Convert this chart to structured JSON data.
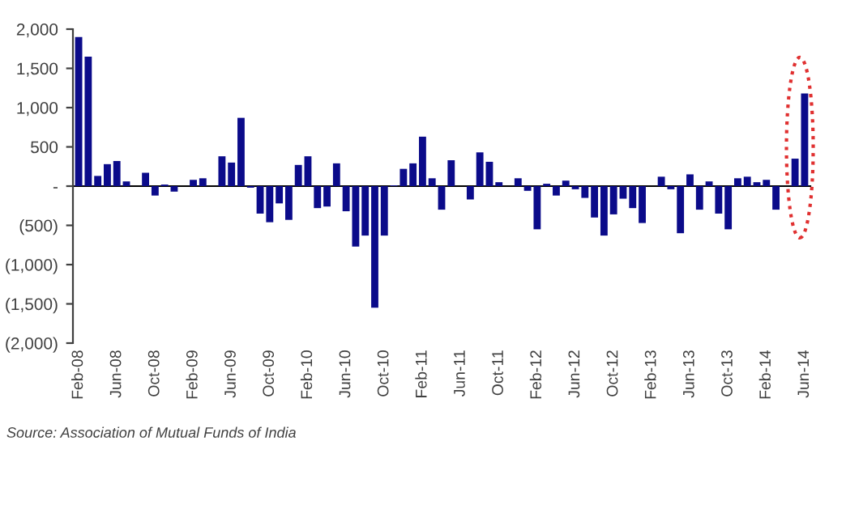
{
  "chart_data": {
    "type": "bar",
    "categories": [
      "Feb-08",
      null,
      null,
      null,
      "Jun-08",
      null,
      null,
      null,
      "Oct-08",
      null,
      null,
      null,
      "Feb-09",
      null,
      null,
      null,
      "Jun-09",
      null,
      null,
      null,
      "Oct-09",
      null,
      null,
      null,
      "Feb-10",
      null,
      null,
      null,
      "Jun-10",
      null,
      null,
      null,
      "Oct-10",
      null,
      null,
      null,
      "Feb-11",
      null,
      null,
      null,
      "Jun-11",
      null,
      null,
      null,
      "Oct-11",
      null,
      null,
      null,
      "Feb-12",
      null,
      null,
      null,
      "Jun-12",
      null,
      null,
      null,
      "Oct-12",
      null,
      null,
      null,
      "Feb-13",
      null,
      null,
      null,
      "Jun-13",
      null,
      null,
      null,
      "Oct-13",
      null,
      null,
      null,
      "Feb-14",
      null,
      null,
      null,
      "Jun-14"
    ],
    "values": [
      1900,
      1650,
      130,
      280,
      320,
      60,
      0,
      170,
      -120,
      20,
      -70,
      0,
      80,
      100,
      0,
      380,
      300,
      870,
      -20,
      -350,
      -460,
      -220,
      -430,
      270,
      380,
      -280,
      -260,
      290,
      -320,
      -770,
      -630,
      -1550,
      -630,
      10,
      220,
      290,
      630,
      100,
      -300,
      330,
      0,
      -170,
      430,
      310,
      50,
      0,
      100,
      -60,
      -550,
      30,
      -120,
      70,
      -40,
      -150,
      -400,
      -630,
      -360,
      -160,
      -280,
      -470,
      0,
      120,
      -40,
      -600,
      150,
      -300,
      60,
      -350,
      -550,
      100,
      120,
      50,
      80,
      -300,
      0,
      350,
      1180
    ],
    "color": "#0b0b8a",
    "ylim": [
      -2000,
      2000
    ],
    "yticks": [
      {
        "value": 2000,
        "label": "2,000"
      },
      {
        "value": 1500,
        "label": "1,500"
      },
      {
        "value": 1000,
        "label": "1,000"
      },
      {
        "value": 500,
        "label": "500"
      },
      {
        "value": 0,
        "label": "-"
      },
      {
        "value": -500,
        "label": "(500)"
      },
      {
        "value": -1000,
        "label": "(1,000)"
      },
      {
        "value": -1500,
        "label": "(1,500)"
      },
      {
        "value": -2000,
        "label": "(2,000)"
      }
    ],
    "legend": false,
    "annotations": [
      "Source: Association of Mutual Funds of India"
    ]
  }
}
